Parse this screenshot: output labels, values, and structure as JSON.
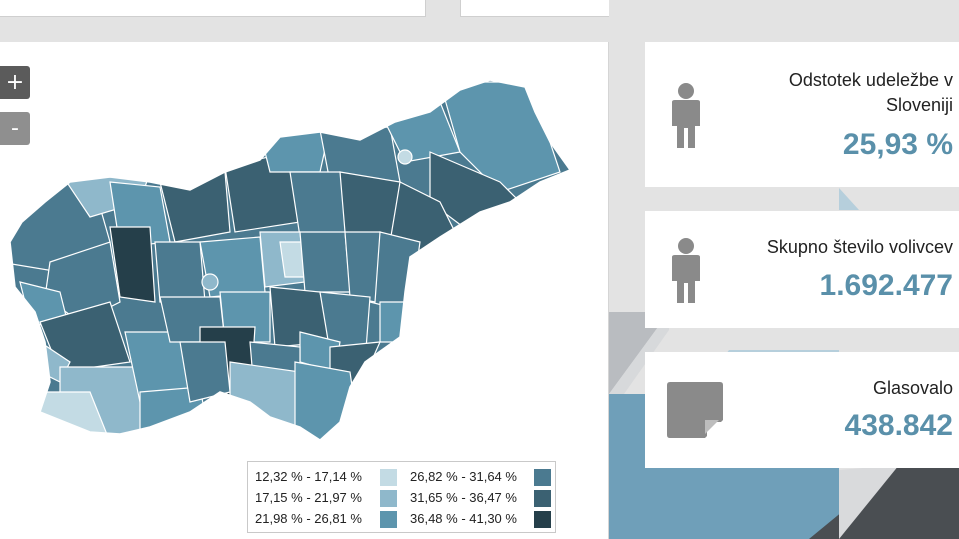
{
  "map": {
    "zoom_in_label": "+",
    "zoom_out_label": "-",
    "legend": [
      {
        "label": "12,32 % - 17,14 %",
        "color": "#c3dbe4"
      },
      {
        "label": "17,15 % - 21,97 %",
        "color": "#8fb8cb"
      },
      {
        "label": "21,98 % - 26,81 %",
        "color": "#5d95ad"
      },
      {
        "label": "26,82 % - 31,64 %",
        "color": "#4b7a90"
      },
      {
        "label": "31,65 % - 36,47 %",
        "color": "#3b6172"
      },
      {
        "label": "36,48 % - 41,30 %",
        "color": "#253f4a"
      }
    ]
  },
  "cards": [
    {
      "title": "Odstotek udeležbe v Sloveniji",
      "value": "25,93 %",
      "icon": "person-icon"
    },
    {
      "title": "Skupno število volivcev",
      "value": "1.692.477",
      "icon": "person-icon"
    },
    {
      "title": "Glasovalo",
      "value": "438.842",
      "icon": "note-icon"
    }
  ]
}
